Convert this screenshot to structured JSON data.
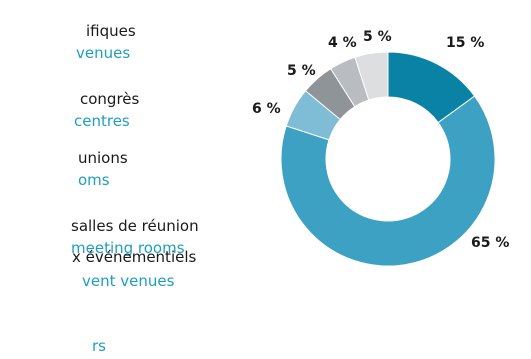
{
  "legend": {
    "items": [
      {
        "fr": "ifiques",
        "en": "venues"
      },
      {
        "fr": "congrès",
        "en": "centres"
      },
      {
        "fr": "unions",
        "en": "oms"
      },
      {
        "fr": "salles de réunion",
        "en": "meeting rooms"
      },
      {
        "fr": "x événementiels",
        "en": "vent venues"
      },
      {
        "fr": "",
        "en": "rs"
      }
    ]
  },
  "chart_data": {
    "type": "pie",
    "donut": true,
    "start_angle_deg": 0,
    "direction": "clockwise",
    "slices": [
      {
        "value": 15,
        "label": "15 %",
        "color": "#0a82a6"
      },
      {
        "value": 65,
        "label": "65 %",
        "color": "#3ca1c3"
      },
      {
        "value": 6,
        "label": "6 %",
        "color": "#7fbcd6"
      },
      {
        "value": 5,
        "label": "5 %",
        "color": "#8f9499"
      },
      {
        "value": 4,
        "label": "4 %",
        "color": "#b9bcc0"
      },
      {
        "value": 5,
        "label": "5 %",
        "color": "#dcdedf"
      }
    ]
  }
}
